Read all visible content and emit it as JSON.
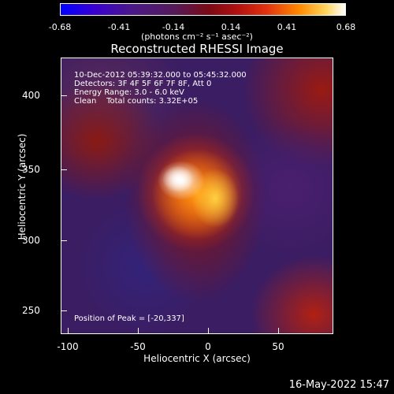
{
  "colorbar": {
    "ticks": [
      "-0.68",
      "-0.41",
      "-0.14",
      "0.14",
      "0.41",
      "0.68"
    ],
    "units": "(photons cm⁻² s⁻¹ asec⁻²)"
  },
  "title": "Reconstructed RHESSI Image",
  "annotations": {
    "time_range": "10-Dec-2012 05:39:32.000 to 05:45:32.000",
    "detectors": "Detectors: 3F 4F 5F 6F 7F 8F, Att 0",
    "energy": "Energy Range: 3.0 - 6.0 keV",
    "method": "Clean    Total counts: 3.32E+05",
    "peak": "Position of Peak = [-20,337]"
  },
  "axes": {
    "xlabel": "Heliocentric X (arcsec)",
    "ylabel": "Heliocentric Y (arcsec)",
    "xticks": [
      "-100",
      "-50",
      "0",
      "50"
    ],
    "yticks": [
      "400",
      "350",
      "300",
      "250"
    ]
  },
  "footer": {
    "date": "16-May-2022 15:47"
  },
  "colors": {
    "background": "#000000",
    "negative": "#0000ff",
    "positive": "#ffffff"
  }
}
